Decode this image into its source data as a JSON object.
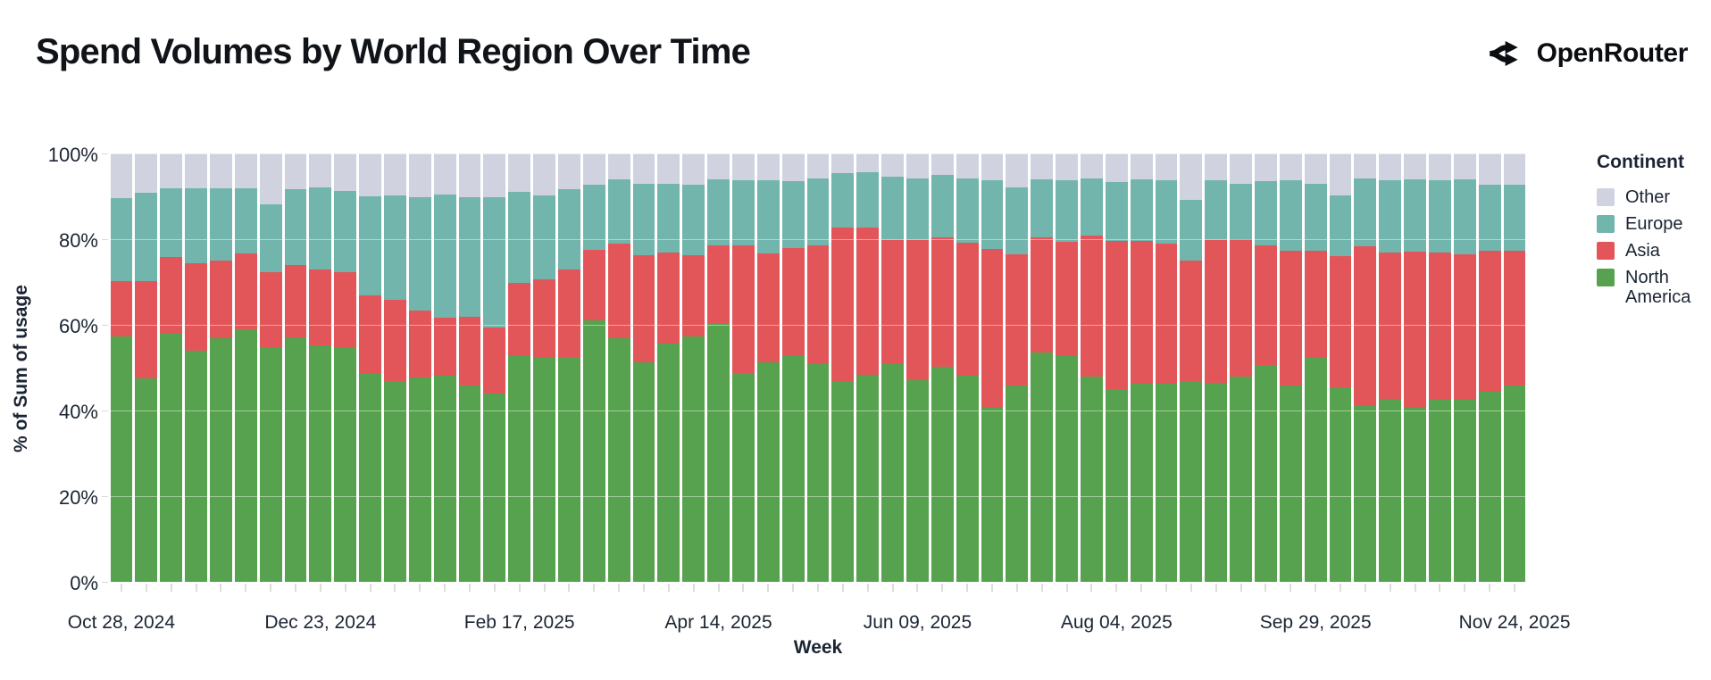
{
  "header": {
    "title": "Spend Volumes by World Region Over Time",
    "brand": "OpenRouter"
  },
  "chart_data": {
    "type": "bar",
    "stacked": true,
    "normalized_to_100_percent": true,
    "title": "Spend Volumes by World Region Over Time",
    "xlabel": "Week",
    "ylabel": "% of Sum of usage",
    "ylim": [
      0,
      100
    ],
    "week_count": 57,
    "x_range": [
      "Oct 28, 2024",
      "Nov 24, 2025"
    ],
    "x_ticks": [
      {
        "index": 0,
        "label": "Oct 28, 2024"
      },
      {
        "index": 8,
        "label": "Dec 23, 2024"
      },
      {
        "index": 16,
        "label": "Feb 17, 2025"
      },
      {
        "index": 24,
        "label": "Apr 14, 2025"
      },
      {
        "index": 32,
        "label": "Jun 09, 2025"
      },
      {
        "index": 40,
        "label": "Aug 04, 2025"
      },
      {
        "index": 48,
        "label": "Sep 29, 2025"
      },
      {
        "index": 56,
        "label": "Nov 24, 2025"
      }
    ],
    "y_ticks": [
      {
        "value": 0,
        "label": "0%"
      },
      {
        "value": 20,
        "label": "20%"
      },
      {
        "value": 40,
        "label": "40%"
      },
      {
        "value": 60,
        "label": "60%"
      },
      {
        "value": 80,
        "label": "80%"
      },
      {
        "value": 100,
        "label": "100%"
      }
    ],
    "legend": {
      "title": "Continent",
      "position": "right",
      "entries_top_to_bottom": [
        "Other",
        "Europe",
        "Asia",
        "North America"
      ]
    },
    "series_order": "bottom_to_top",
    "series": [
      {
        "name": "North America",
        "color": "#57A24E",
        "values": [
          57.2,
          47.6,
          58.0,
          54.0,
          56.8,
          59.0,
          54.8,
          57.0,
          55.3,
          54.7,
          48.5,
          46.9,
          47.8,
          48.2,
          45.9,
          44.0,
          52.7,
          52.2,
          52.6,
          61.1,
          56.8,
          51.3,
          55.6,
          57.2,
          60.2,
          48.8,
          51.3,
          52.8,
          50.8,
          46.7,
          48.3,
          50.8,
          47.0,
          50.3,
          48.1,
          40.8,
          45.9,
          53.6,
          52.8,
          47.9,
          45.1,
          46.2,
          46.2,
          46.9,
          46.4,
          47.9,
          50.4,
          45.9,
          52.2,
          45.4,
          41.0,
          42.8,
          40.8,
          42.4,
          42.6,
          44.4,
          45.9
        ]
      },
      {
        "name": "Asia",
        "color": "#E25659",
        "values": [
          13.1,
          22.6,
          17.8,
          20.4,
          18.3,
          17.7,
          17.5,
          17.0,
          17.7,
          17.5,
          18.4,
          19.0,
          15.6,
          13.4,
          16.0,
          15.4,
          17.0,
          18.5,
          20.3,
          16.5,
          22.2,
          24.9,
          21.3,
          19.1,
          18.4,
          29.7,
          25.4,
          25.1,
          27.7,
          36.0,
          34.4,
          28.9,
          32.7,
          30.1,
          31.1,
          37.0,
          30.6,
          26.8,
          26.5,
          32.9,
          34.4,
          33.3,
          32.8,
          28.2,
          33.3,
          32.2,
          28.2,
          31.4,
          25.0,
          30.6,
          37.3,
          34.1,
          36.3,
          34.5,
          33.9,
          33.0,
          31.3
        ]
      },
      {
        "name": "Europe",
        "color": "#71B5AD",
        "values": [
          19.3,
          20.7,
          16.0,
          17.4,
          16.8,
          15.2,
          15.8,
          17.6,
          19.0,
          19.1,
          23.2,
          24.4,
          26.4,
          28.9,
          27.9,
          30.3,
          21.4,
          19.6,
          18.7,
          15.1,
          15.0,
          16.8,
          16.0,
          16.5,
          15.4,
          15.3,
          17.0,
          15.6,
          15.7,
          12.8,
          13.0,
          14.8,
          14.5,
          14.7,
          14.9,
          15.9,
          15.6,
          13.6,
          14.4,
          13.3,
          13.9,
          14.5,
          14.8,
          14.0,
          14.1,
          12.9,
          15.0,
          16.4,
          15.7,
          14.3,
          15.8,
          16.8,
          16.8,
          16.8,
          17.4,
          15.4,
          15.5
        ]
      },
      {
        "name": "Other",
        "color": "#D0D3DF",
        "values": [
          10.4,
          9.1,
          8.2,
          8.2,
          8.1,
          8.1,
          11.9,
          8.4,
          8.0,
          8.7,
          9.9,
          9.7,
          10.2,
          9.5,
          10.2,
          10.3,
          8.9,
          9.7,
          8.4,
          7.3,
          6.0,
          7.0,
          7.1,
          7.2,
          6.0,
          6.2,
          6.3,
          6.5,
          5.8,
          4.5,
          4.3,
          5.5,
          5.8,
          4.9,
          5.9,
          6.3,
          7.9,
          6.0,
          6.3,
          5.9,
          6.6,
          6.0,
          6.2,
          10.9,
          6.2,
          7.0,
          6.4,
          6.3,
          7.1,
          9.7,
          5.9,
          6.3,
          6.1,
          6.3,
          6.1,
          7.2,
          7.3
        ]
      }
    ],
    "grid": {
      "horizontal_lines_at": [
        20,
        40,
        60,
        80,
        100
      ]
    }
  },
  "colors": {
    "background": "#ffffff",
    "axis_text": "#1b2533",
    "tick_mark": "#dcdcdc",
    "title_text": "#101419"
  }
}
